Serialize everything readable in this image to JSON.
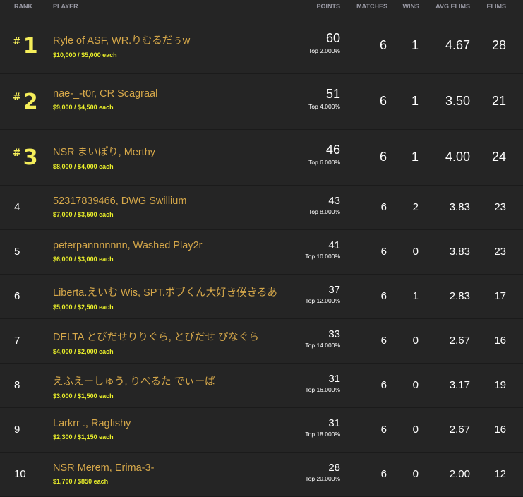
{
  "headers": {
    "rank": "RANK",
    "player": "PLAYER",
    "points": "POINTS",
    "matches": "MATCHES",
    "wins": "WINS",
    "avg_elims": "AVG ELIMS",
    "elims": "ELIMS"
  },
  "colors": {
    "background": "#252525",
    "name": "#d6a84a",
    "prize": "#e9ee2a",
    "rank_top": "#f5ee5a"
  },
  "rows": [
    {
      "rank": "1",
      "hash": "#",
      "name": "Ryle of ASF, WR.りむるだぅw",
      "prize": "$10,000",
      "each": "/ $5,000 each",
      "points": "60",
      "percentile": "Top 2.000%",
      "matches": "6",
      "wins": "1",
      "avg_elims": "4.67",
      "elims": "28"
    },
    {
      "rank": "2",
      "hash": "#",
      "name": "nae-_-t0r, CR Scagraal",
      "prize": "$9,000",
      "each": "/ $4,500 each",
      "points": "51",
      "percentile": "Top 4.000%",
      "matches": "6",
      "wins": "1",
      "avg_elims": "3.50",
      "elims": "21"
    },
    {
      "rank": "3",
      "hash": "#",
      "name": "NSR まいぽり, Merthy",
      "prize": "$8,000",
      "each": "/ $4,000 each",
      "points": "46",
      "percentile": "Top 6.000%",
      "matches": "6",
      "wins": "1",
      "avg_elims": "4.00",
      "elims": "24"
    },
    {
      "rank": "4",
      "name": "52317839466, DWG Swillium",
      "prize": "$7,000",
      "each": "/ $3,500 each",
      "points": "43",
      "percentile": "Top 8.000%",
      "matches": "6",
      "wins": "2",
      "avg_elims": "3.83",
      "elims": "23"
    },
    {
      "rank": "5",
      "name": "peterpannnnnnn, Washed Play2r",
      "prize": "$6,000",
      "each": "/ $3,000 each",
      "points": "41",
      "percentile": "Top 10.000%",
      "matches": "6",
      "wins": "0",
      "avg_elims": "3.83",
      "elims": "23"
    },
    {
      "rank": "6",
      "name": "Liberta.えいむ Wis, SPT.ポブくん大好き僕きるあ",
      "prize": "$5,000",
      "each": "/ $2,500 each",
      "points": "37",
      "percentile": "Top 12.000%",
      "matches": "6",
      "wins": "1",
      "avg_elims": "2.83",
      "elims": "17"
    },
    {
      "rank": "7",
      "name": "DELTA とびだせりりぐら, とびだせ ぴなぐら",
      "prize": "$4,000",
      "each": "/ $2,000 each",
      "points": "33",
      "percentile": "Top 14.000%",
      "matches": "6",
      "wins": "0",
      "avg_elims": "2.67",
      "elims": "16"
    },
    {
      "rank": "8",
      "name": "えふえーしゅう, りべるた でぃーば",
      "prize": "$3,000",
      "each": "/ $1,500 each",
      "points": "31",
      "percentile": "Top 16.000%",
      "matches": "6",
      "wins": "0",
      "avg_elims": "3.17",
      "elims": "19"
    },
    {
      "rank": "9",
      "name": "Larkrr ., Ragfishy",
      "prize": "$2,300",
      "each": "/ $1,150 each",
      "points": "31",
      "percentile": "Top 18.000%",
      "matches": "6",
      "wins": "0",
      "avg_elims": "2.67",
      "elims": "16"
    },
    {
      "rank": "10",
      "name": "NSR Merem, Erima-3-",
      "prize": "$1,700",
      "each": "/ $850 each",
      "points": "28",
      "percentile": "Top 20.000%",
      "matches": "6",
      "wins": "0",
      "avg_elims": "2.00",
      "elims": "12"
    }
  ]
}
